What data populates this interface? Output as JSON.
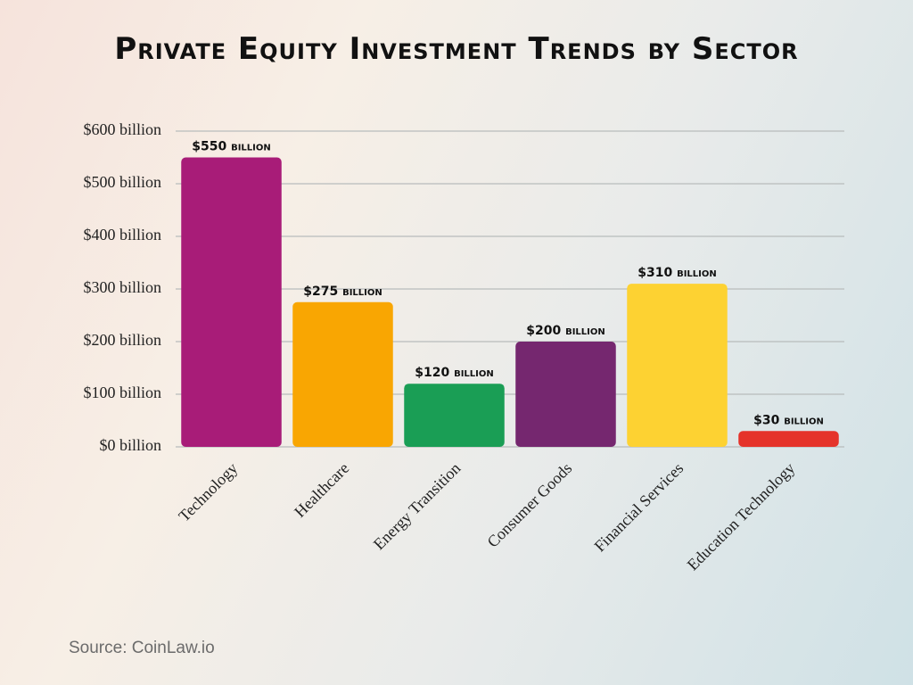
{
  "chart_data": {
    "type": "bar",
    "title": "Private Equity Investment Trends by Sector",
    "categories": [
      "Technology",
      "Healthcare",
      "Energy Transition",
      "Consumer Goods",
      "Financial Services",
      "Education Technology"
    ],
    "values": [
      550,
      275,
      120,
      200,
      310,
      30
    ],
    "value_labels": [
      "$550 billion",
      "$275 billion",
      "$120 billion",
      "$200 billion",
      "$310 billion",
      "$30 billion"
    ],
    "colors": [
      "#a81c78",
      "#f9a602",
      "#1a9e55",
      "#75276f",
      "#fdd232",
      "#e5332a"
    ],
    "ylim": [
      0,
      600
    ],
    "yticks": [
      {
        "value": 0,
        "label": "$0 billion"
      },
      {
        "value": 100,
        "label": "$100 billion"
      },
      {
        "value": 200,
        "label": "$200 billion"
      },
      {
        "value": 300,
        "label": "$300 billion"
      },
      {
        "value": 400,
        "label": "$400 billion"
      },
      {
        "value": 500,
        "label": "$500 billion"
      },
      {
        "value": 600,
        "label": "$600 billion"
      }
    ],
    "grid": true,
    "source": "Source: CoinLaw.io"
  }
}
